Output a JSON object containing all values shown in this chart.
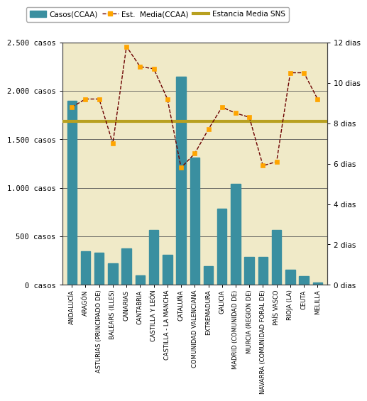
{
  "categories": [
    "ANDALUCÍA",
    "ARAGÓN",
    "ASTURIAS (PRINCIPADO DE)",
    "BALEARS (ILLES)",
    "CANARIAS",
    "CANTABRIA",
    "CASTILLA Y LEÓN",
    "CASTILLA - LA MANCHA",
    "CATALUÑA",
    "COMUNIDAD VALENCIANA",
    "EXTREMADURA",
    "GALICIA",
    "MADRID (COMUNIDAD DE)",
    "MURCIA (REGION DE)",
    "NAVARRA (COMUNIDAD FORAL DE)",
    "PAÍS VASCO",
    "RIOJA (LA)",
    "CEUTA",
    "MELILLA"
  ],
  "casos": [
    1900,
    350,
    330,
    220,
    375,
    100,
    570,
    310,
    2150,
    1310,
    190,
    785,
    1040,
    285,
    285,
    565,
    155,
    90,
    25
  ],
  "estancia_media": [
    8.8,
    9.2,
    9.2,
    7.0,
    11.8,
    10.8,
    10.7,
    9.2,
    5.8,
    6.5,
    7.7,
    8.8,
    8.5,
    8.3,
    5.9,
    6.1,
    10.5,
    10.5,
    9.2
  ],
  "sns_line": 8.1,
  "bar_color": "#3a8fa0",
  "line_color": "#6B0000",
  "marker_facecolor": "#FFA500",
  "marker_edgecolor": "#FFA500",
  "sns_color": "#B8A020",
  "background_color": "#F0EAC8",
  "plot_bg_color": "#EEE8C0",
  "ylim_left": [
    0,
    2500
  ],
  "ylim_right": [
    0,
    12
  ],
  "yticks_left": [
    0,
    500,
    1000,
    1500,
    2000,
    2500
  ],
  "yticks_right": [
    0,
    2,
    4,
    6,
    8,
    10,
    12
  ],
  "yticklabels_left": [
    "0 casos",
    "500 casos",
    "1.000 casos",
    "1.500 casos",
    "2.000 casos",
    "2.500 casos"
  ],
  "yticklabels_right": [
    "0 dias",
    "2 dias",
    "4 dias",
    "6 dias",
    "8 dias",
    "10 dias",
    "12 dias"
  ],
  "legend_casos": "Casos(CCAA)",
  "legend_estancia": "Est.  Media(CCAA)",
  "legend_sns": "Estancia Media SNS"
}
